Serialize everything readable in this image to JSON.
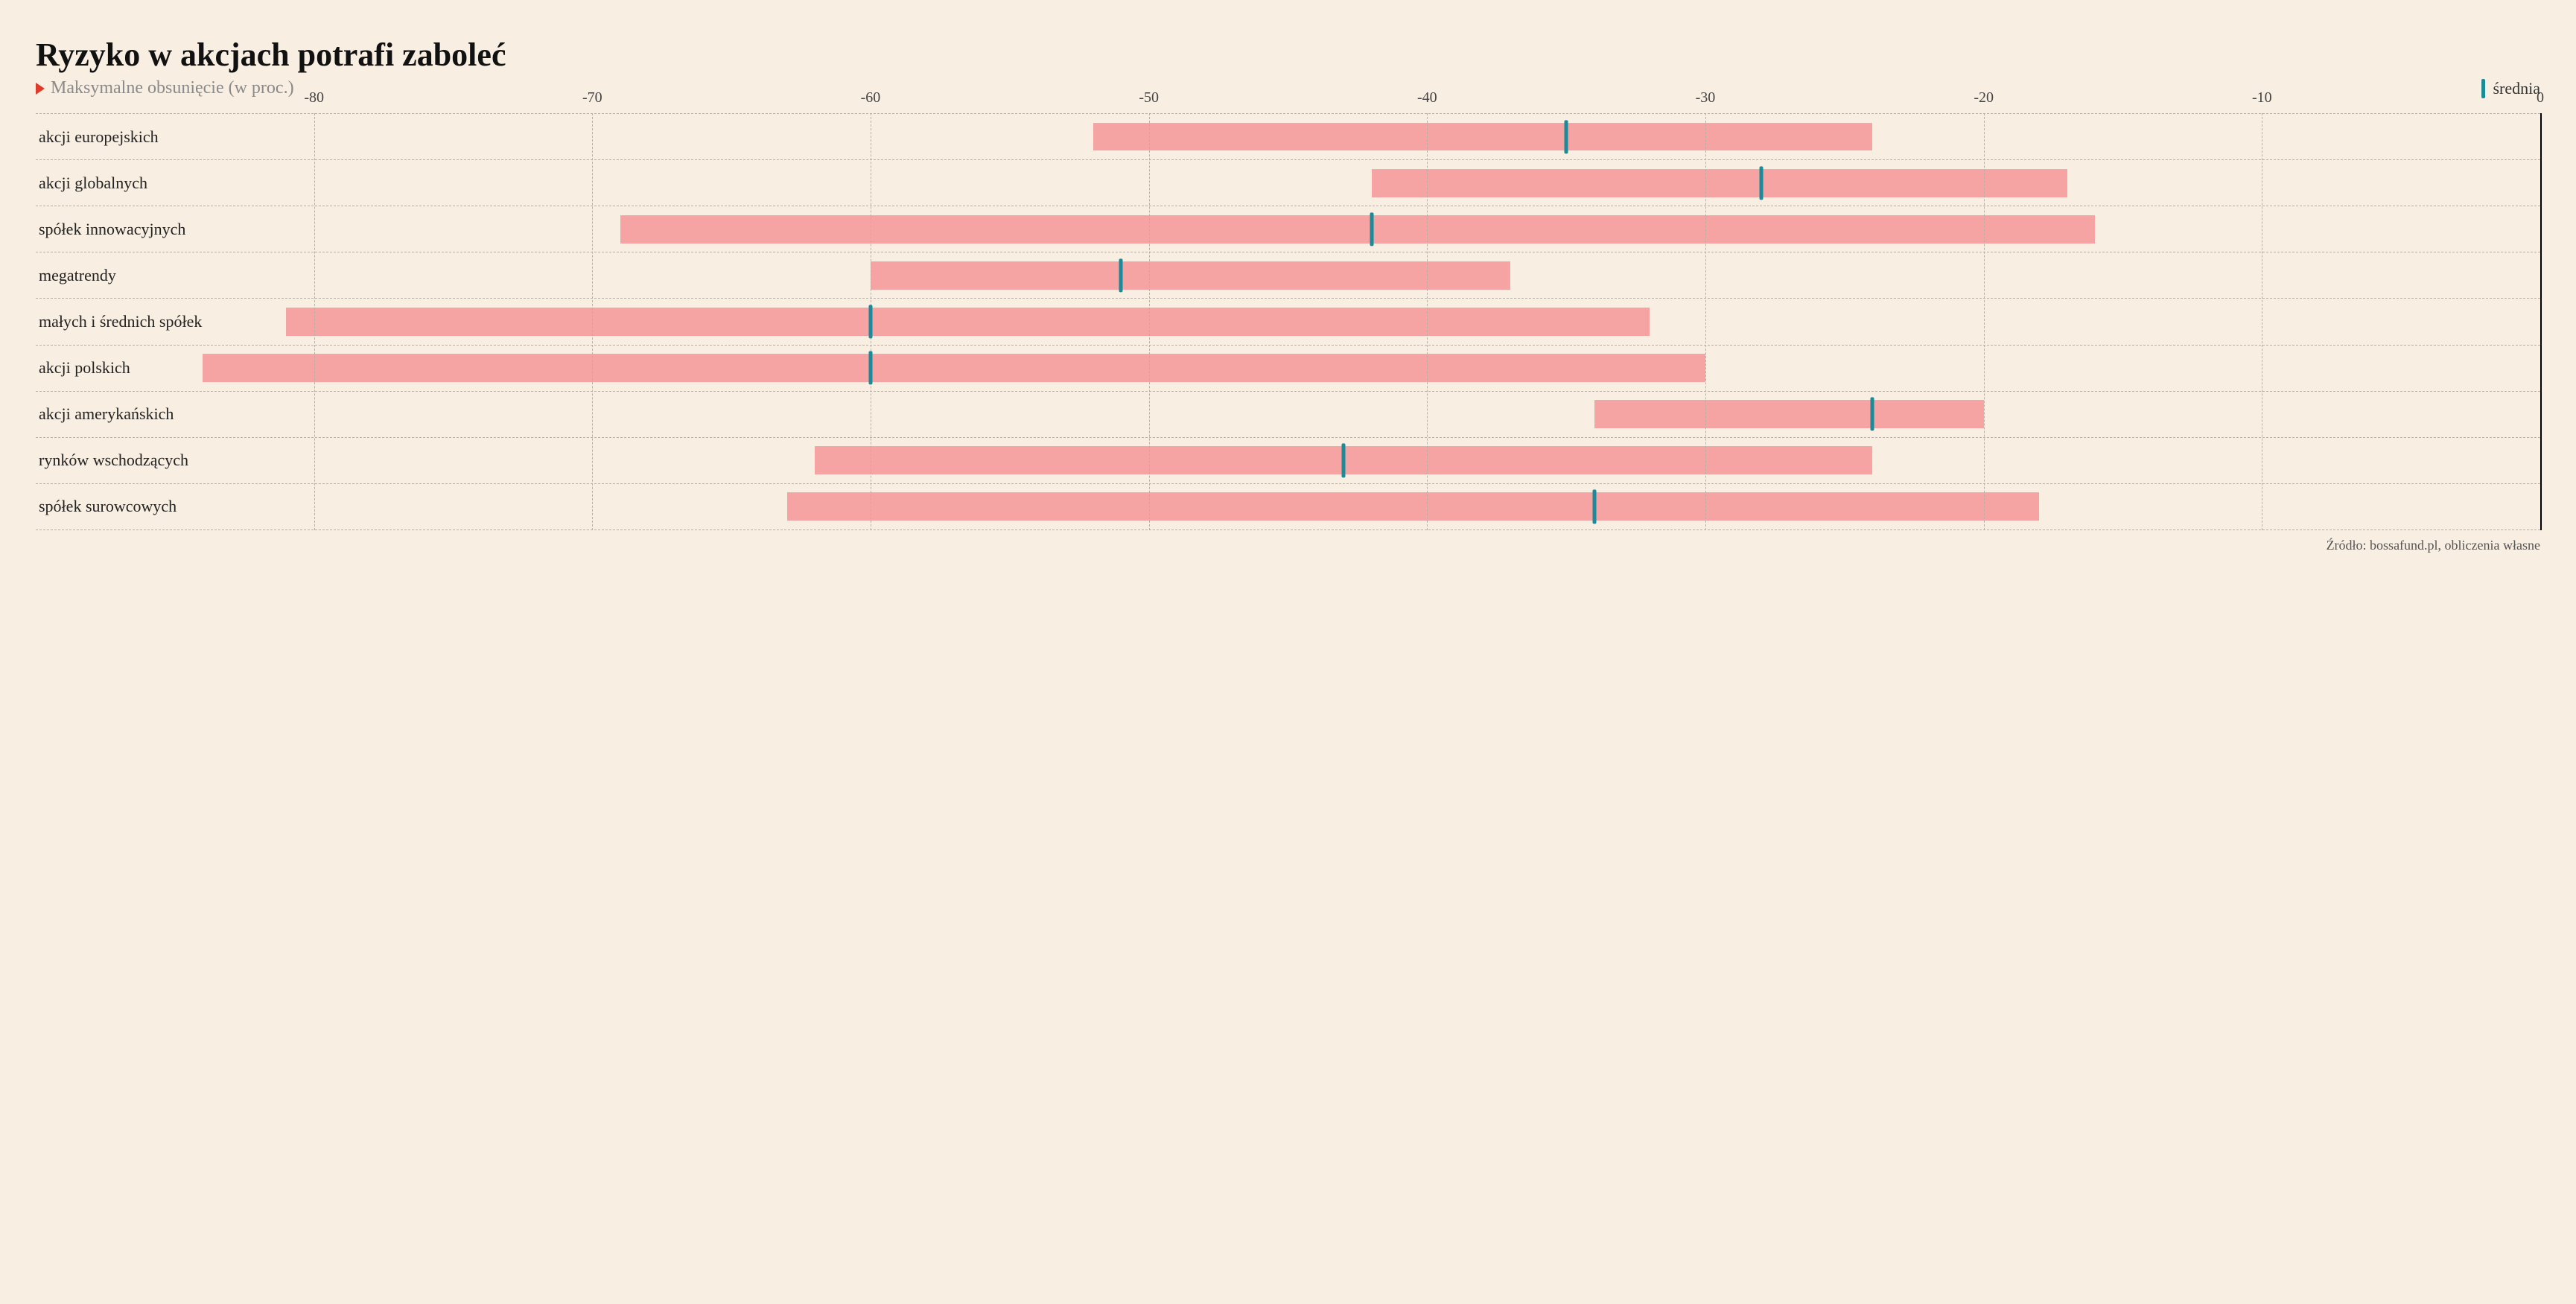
{
  "chart": {
    "type": "range-bar-horizontal",
    "title": "Ryzyko w akcjach potrafi zaboleć",
    "subtitle": "Maksymalne obsunięcie (w proc.)",
    "legend_mean": "średnia",
    "source": "Źródło: bossafund.pl, obliczenia własne",
    "background_color": "#f8eee1",
    "bar_color": "#f6a3a3",
    "mean_tick_color": "#1b8a99",
    "grid_dash_color": "#b8b0a5",
    "zero_axis_color": "#000000",
    "triangle_color": "#e03b2a",
    "title_fontsize": 44,
    "subtitle_fontsize": 24,
    "label_fontsize": 22,
    "axis_fontsize": 20,
    "x_axis": {
      "min": -90,
      "max": 0,
      "ticks": [
        -80,
        -70,
        -60,
        -50,
        -40,
        -30,
        -20,
        -10,
        0
      ]
    },
    "rows": [
      {
        "label": "akcji europejskich",
        "low": -52,
        "high": -24,
        "mean": -35
      },
      {
        "label": "akcji globalnych",
        "low": -42,
        "high": -17,
        "mean": -28
      },
      {
        "label": "spółek innowacyjnych",
        "low": -69,
        "high": -16,
        "mean": -42
      },
      {
        "label": "megatrendy",
        "low": -60,
        "high": -37,
        "mean": -51
      },
      {
        "label": "małych i średnich spółek",
        "low": -81,
        "high": -32,
        "mean": -60
      },
      {
        "label": "akcji polskich",
        "low": -84,
        "high": -30,
        "mean": -60
      },
      {
        "label": "akcji amerykańskich",
        "low": -34,
        "high": -20,
        "mean": -24
      },
      {
        "label": "rynków wschodzących",
        "low": -62,
        "high": -24,
        "mean": -43
      },
      {
        "label": "spółek surowcowych",
        "low": -63,
        "high": -18,
        "mean": -34
      }
    ]
  }
}
